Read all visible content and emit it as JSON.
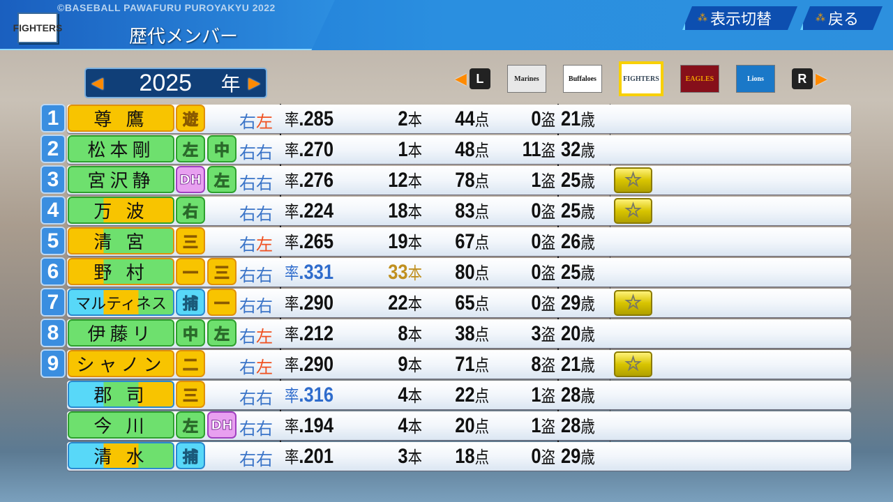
{
  "header": {
    "copyright": "©BASEBALL PAWAFURU PUROYAKYU 2022",
    "title": "歴代メンバー",
    "team_logo": "FIGHTERS",
    "toggle_label": "表示切替",
    "back_label": "戻る"
  },
  "year_selector": {
    "year": "2025",
    "unit": "年"
  },
  "team_selector": {
    "left_key": "L",
    "right_key": "R",
    "teams": [
      {
        "name": "Marines",
        "bg": "#e8e8e8",
        "fg": "#222"
      },
      {
        "name": "Buffaloes",
        "bg": "#ffffff",
        "fg": "#111"
      },
      {
        "name": "FIGHTERS",
        "bg": "#ffffff",
        "fg": "#345",
        "selected": true
      },
      {
        "name": "EAGLES",
        "bg": "#860f1a",
        "fg": "#f0a000"
      },
      {
        "name": "Lions",
        "bg": "#1a78c8",
        "fg": "#fff"
      }
    ]
  },
  "colors": {
    "infield": "#f8c400",
    "outfield": "#6ee06e",
    "catcher": "#58d8f8",
    "dh": "#e8a0f0",
    "highlight_avg": "#2f6ccc",
    "highlight_hr": "#c09020"
  },
  "players": [
    {
      "order": "1",
      "name": "尊 鷹",
      "name_colors": [
        "y"
      ],
      "positions": [
        [
          "遊",
          "y"
        ]
      ],
      "hand": [
        "右",
        "左"
      ],
      "avg": ".285",
      "hr": "2",
      "rbi": "44",
      "sb": "0",
      "age": "21",
      "star": false
    },
    {
      "order": "2",
      "name": "松本剛",
      "name_colors": [
        "g"
      ],
      "positions": [
        [
          "左",
          "g"
        ],
        [
          "中",
          "g"
        ]
      ],
      "hand": [
        "右",
        "右"
      ],
      "avg": ".270",
      "hr": "1",
      "rbi": "48",
      "sb": "11",
      "age": "32",
      "star": false
    },
    {
      "order": "3",
      "name": "宮沢静",
      "name_colors": [
        "g"
      ],
      "positions": [
        [
          "DH",
          "d"
        ],
        [
          "左",
          "g"
        ]
      ],
      "hand": [
        "右",
        "右"
      ],
      "avg": ".276",
      "hr": "12",
      "rbi": "78",
      "sb": "1",
      "age": "25",
      "star": true
    },
    {
      "order": "4",
      "name": "万 波",
      "name_colors": [
        "g",
        "y",
        "y"
      ],
      "positions": [
        [
          "右",
          "g"
        ]
      ],
      "hand": [
        "右",
        "右"
      ],
      "avg": ".224",
      "hr": "18",
      "rbi": "83",
      "sb": "0",
      "age": "25",
      "star": true
    },
    {
      "order": "5",
      "name": "清 宮",
      "name_colors": [
        "y",
        "g",
        "g"
      ],
      "positions": [
        [
          "三",
          "y"
        ]
      ],
      "hand": [
        "右",
        "左"
      ],
      "avg": ".265",
      "hr": "19",
      "rbi": "67",
      "sb": "0",
      "age": "26",
      "star": false
    },
    {
      "order": "6",
      "name": "野 村",
      "name_colors": [
        "y",
        "g",
        "g"
      ],
      "positions": [
        [
          "一",
          "y"
        ],
        [
          "三",
          "y"
        ]
      ],
      "hand": [
        "右",
        "右"
      ],
      "avg": ".331",
      "avg_highlight": true,
      "hr": "33",
      "hr_highlight": true,
      "rbi": "80",
      "sb": "0",
      "age": "25",
      "star": false
    },
    {
      "order": "7",
      "name": "マルティネス",
      "name_colors": [
        "c",
        "y",
        "g"
      ],
      "positions": [
        [
          "捕",
          "c"
        ],
        [
          "一",
          "y"
        ]
      ],
      "hand": [
        "右",
        "右"
      ],
      "avg": ".290",
      "hr": "22",
      "rbi": "65",
      "sb": "0",
      "age": "29",
      "star": true
    },
    {
      "order": "8",
      "name": "伊藤リ",
      "name_colors": [
        "g"
      ],
      "positions": [
        [
          "中",
          "g"
        ],
        [
          "左",
          "g"
        ]
      ],
      "hand": [
        "右",
        "左"
      ],
      "avg": ".212",
      "hr": "8",
      "rbi": "38",
      "sb": "3",
      "age": "20",
      "star": false
    },
    {
      "order": "9",
      "name": "シャノン",
      "name_colors": [
        "y"
      ],
      "positions": [
        [
          "二",
          "y"
        ]
      ],
      "hand": [
        "右",
        "左"
      ],
      "avg": ".290",
      "hr": "9",
      "rbi": "71",
      "sb": "8",
      "age": "21",
      "star": true
    },
    {
      "order": "",
      "name": "郡 司",
      "name_colors": [
        "c",
        "g",
        "y"
      ],
      "positions": [
        [
          "三",
          "y"
        ]
      ],
      "hand": [
        "右",
        "右"
      ],
      "avg": ".316",
      "avg_highlight": true,
      "hr": "4",
      "rbi": "22",
      "sb": "1",
      "age": "28",
      "star": false
    },
    {
      "order": "",
      "name": "今 川",
      "name_colors": [
        "g"
      ],
      "positions": [
        [
          "左",
          "g"
        ],
        [
          "DH",
          "d"
        ]
      ],
      "hand": [
        "右",
        "右"
      ],
      "avg": ".194",
      "hr": "4",
      "rbi": "20",
      "sb": "1",
      "age": "28",
      "star": false
    },
    {
      "order": "",
      "name": "清 水",
      "name_colors": [
        "c",
        "y",
        "g"
      ],
      "positions": [
        [
          "捕",
          "c"
        ]
      ],
      "hand": [
        "右",
        "右"
      ],
      "avg": ".201",
      "hr": "3",
      "rbi": "18",
      "sb": "0",
      "age": "29",
      "star": false
    }
  ],
  "units": {
    "avg": "率",
    "hr": "本",
    "rbi": "点",
    "sb": "盗",
    "age": "歳",
    "star": "☆"
  }
}
